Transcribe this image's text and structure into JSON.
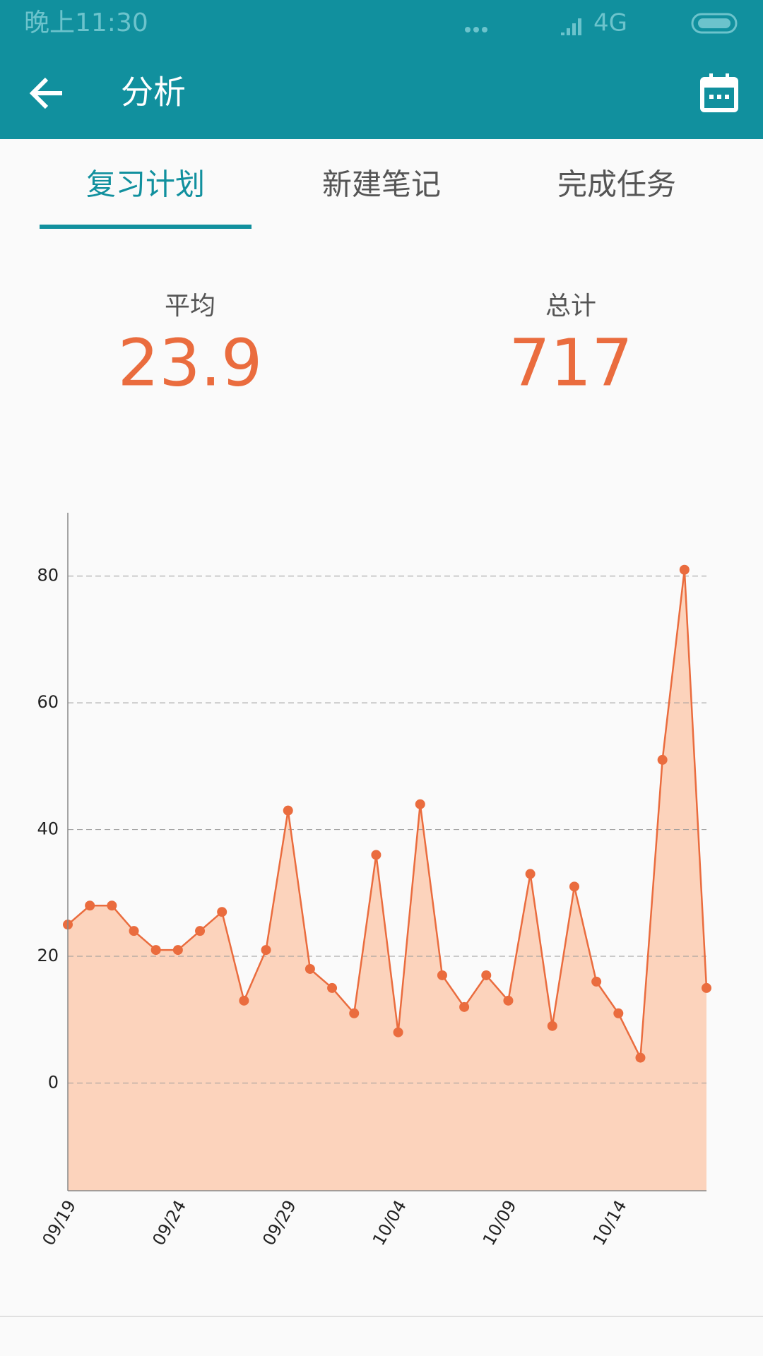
{
  "status_bar": {
    "time": "晚上11:30",
    "network": "4G"
  },
  "app_bar": {
    "title": "分析"
  },
  "tabs": [
    "复习计划",
    "新建笔记",
    "完成任务"
  ],
  "stats": [
    {
      "label": "平均",
      "value": "23.9"
    },
    {
      "label": "总计",
      "value": "717"
    }
  ],
  "chart_data": {
    "type": "line",
    "categories": [
      "09/19",
      null,
      null,
      null,
      null,
      "09/24",
      null,
      null,
      null,
      null,
      "09/29",
      null,
      null,
      null,
      null,
      "10/04",
      null,
      null,
      null,
      null,
      "10/09",
      null,
      null,
      null,
      null,
      "10/14",
      null,
      null,
      null,
      null
    ],
    "values": [
      25,
      28,
      28,
      24,
      21,
      21,
      24,
      27,
      13,
      21,
      43,
      18,
      15,
      11,
      36,
      8,
      44,
      17,
      12,
      17,
      13,
      33,
      9,
      31,
      16,
      11,
      4,
      51,
      81,
      15
    ],
    "color": "#ea6c3e",
    "fill_color": "#fcd3bc",
    "ylim": [
      -17,
      90
    ],
    "yticks": [
      0,
      20,
      40,
      60,
      80
    ],
    "grid": true
  }
}
